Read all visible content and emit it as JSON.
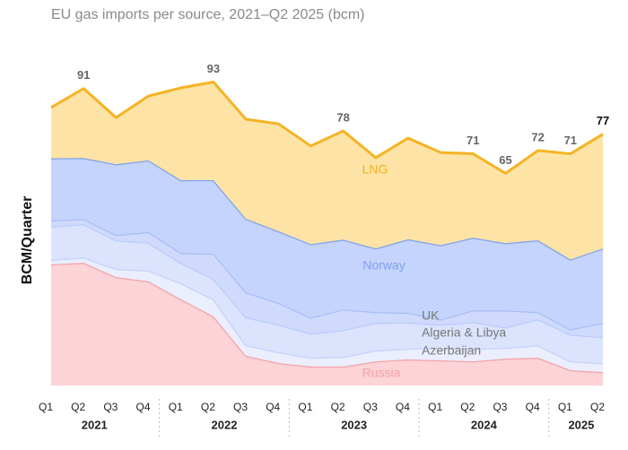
{
  "chart_data": {
    "type": "stacked_area",
    "title": "EU gas imports per source, 2021–Q2 2025 (bcm)",
    "y_label": "BCM/Quarter",
    "categories": [
      "Q1",
      "Q2",
      "Q3",
      "Q4",
      "Q1",
      "Q2",
      "Q3",
      "Q4",
      "Q1",
      "Q2",
      "Q3",
      "Q4",
      "Q1",
      "Q2",
      "Q3",
      "Q4",
      "Q1",
      "Q2"
    ],
    "year_groups": [
      "2021",
      "2022",
      "2023",
      "2024",
      "2025"
    ],
    "ylim": [
      0,
      100
    ],
    "series": [
      {
        "name": "Russia",
        "color": "#fcd3d6",
        "line_color": "#f4a2a8",
        "label_color": "#f4a2a8",
        "values": [
          37.1,
          37.6,
          33.2,
          31.9,
          26.4,
          21.2,
          9.1,
          6.9,
          5.8,
          5.8,
          7.4,
          8.0,
          7.7,
          7.4,
          8.2,
          8.5,
          4.7,
          4.1
        ]
      },
      {
        "name": "Azerbaijan",
        "color": "#eaeefd",
        "line_color": "#c6d2fa",
        "label_color": "#777777",
        "values": [
          1.4,
          1.6,
          2.5,
          3.3,
          4.9,
          5.2,
          3.3,
          3.3,
          2.7,
          3.0,
          3.3,
          3.3,
          3.8,
          3.8,
          3.3,
          3.8,
          2.7,
          2.7
        ]
      },
      {
        "name": "Algeria & Libya",
        "color": "#dbe3fd",
        "line_color": "#bccbfa",
        "label_color": "#777777",
        "values": [
          10.2,
          10.2,
          8.8,
          8.5,
          6.3,
          6.3,
          8.5,
          8.5,
          7.4,
          8.2,
          8.5,
          8.0,
          7.1,
          8.2,
          6.3,
          8.0,
          8.2,
          8.0
        ]
      },
      {
        "name": "UK",
        "color": "#cfdafd",
        "line_color": "#aabdf6",
        "label_color": "#777777",
        "values": [
          1.9,
          1.6,
          1.6,
          3.3,
          3.0,
          7.7,
          7.7,
          6.6,
          4.9,
          6.3,
          3.3,
          3.0,
          1.6,
          3.6,
          5.2,
          2.2,
          1.6,
          4.4
        ]
      },
      {
        "name": "Norway",
        "color": "#c5d4fc",
        "line_color": "#7fa1ee",
        "label_color": "#7fa1ee",
        "values": [
          19.0,
          18.7,
          21.7,
          22.0,
          22.3,
          22.5,
          22.5,
          22.0,
          22.5,
          21.4,
          19.5,
          22.5,
          22.8,
          22.3,
          20.6,
          22.0,
          21.4,
          22.8
        ]
      },
      {
        "name": "LNG",
        "color": "#fde4a6",
        "line_color": "#f5b324",
        "label_color": "#f0b020",
        "values": [
          15.6,
          21.3,
          14.3,
          19.7,
          28.3,
          30.1,
          30.5,
          32.9,
          30.1,
          33.3,
          27.8,
          31.0,
          28.4,
          25.7,
          21.4,
          27.5,
          32.4,
          35.0
        ]
      }
    ],
    "totals": [
      null,
      91,
      null,
      null,
      null,
      93,
      null,
      null,
      null,
      78,
      null,
      null,
      null,
      71,
      65,
      72,
      71,
      77
    ]
  }
}
